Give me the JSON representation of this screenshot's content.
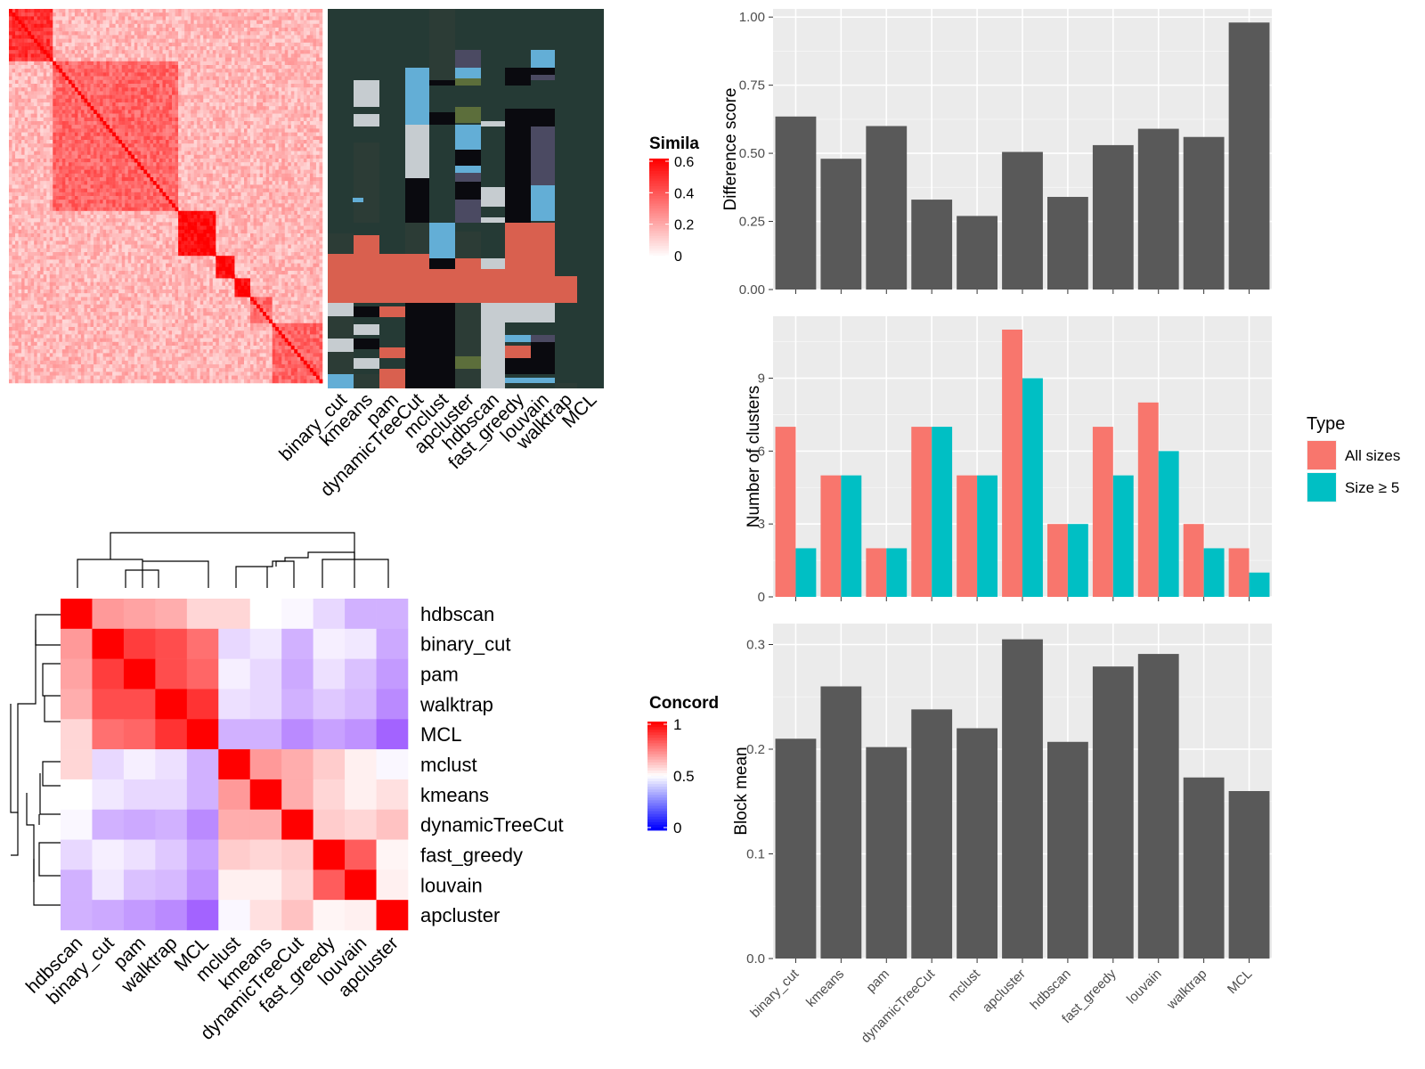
{
  "method_order_top": [
    "binary_cut",
    "kmeans",
    "pam",
    "dynamicTreeCut",
    "mclust",
    "apcluster",
    "hdbscan",
    "fast_greedy",
    "louvain",
    "walktrap",
    "MCL"
  ],
  "similarity_legend": {
    "title": "Simila",
    "ticks": [
      "0.6",
      "0.4",
      "0.2",
      "0"
    ]
  },
  "concordance_legend": {
    "title": "Concord",
    "ticks": [
      "1",
      "0.5",
      "0"
    ]
  },
  "colors": {
    "panel_bg": "#ebebeb",
    "bar_gray": "#595959",
    "all_sizes": "#f8766d",
    "size_ge5": "#00bfc4",
    "cluster_bg": "#253a35",
    "cluster_salmon": "#d9604f",
    "cluster_light": "#c6ccd0",
    "cluster_blue": "#63aed6",
    "cluster_black": "#0a0a0f",
    "cluster_olive": "#5c6e3b",
    "cluster_dark": "#2c3c36",
    "cluster_purple": "#4b4a62"
  },
  "chart_data": [
    {
      "type": "heatmap",
      "name": "similarity",
      "title": "",
      "scale": {
        "min": 0,
        "max": 0.6,
        "low_color": "#ffffff",
        "high_color": "#ff0000"
      },
      "grid_size": 100,
      "diagonal_blocks": [
        [
          0,
          14
        ],
        [
          14,
          54
        ],
        [
          54,
          66
        ],
        [
          66,
          72
        ],
        [
          72,
          77
        ],
        [
          77,
          84
        ],
        [
          84,
          100
        ]
      ]
    },
    {
      "type": "heatmap",
      "name": "cluster_membership",
      "title": "",
      "columns": [
        "binary_cut",
        "kmeans",
        "pam",
        "dynamicTreeCut",
        "mclust",
        "apcluster",
        "hdbscan",
        "fast_greedy",
        "louvain",
        "walktrap",
        "MCL"
      ]
    },
    {
      "type": "heatmap",
      "name": "concordance",
      "title": "",
      "rows": [
        "hdbscan",
        "binary_cut",
        "pam",
        "walktrap",
        "MCL",
        "mclust",
        "kmeans",
        "dynamicTreeCut",
        "fast_greedy",
        "louvain",
        "apcluster"
      ],
      "columns": [
        "hdbscan",
        "binary_cut",
        "pam",
        "walktrap",
        "MCL",
        "mclust",
        "kmeans",
        "dynamicTreeCut",
        "fast_greedy",
        "louvain",
        "apcluster"
      ],
      "scale": {
        "min": 0,
        "mid": 0.5,
        "max": 1
      },
      "values": [
        [
          1.0,
          0.7,
          0.68,
          0.66,
          0.58,
          0.58,
          0.5,
          0.48,
          0.4,
          0.3,
          0.3
        ],
        [
          0.7,
          1.0,
          0.88,
          0.85,
          0.78,
          0.4,
          0.44,
          0.3,
          0.46,
          0.44,
          0.28
        ],
        [
          0.68,
          0.88,
          1.0,
          0.85,
          0.8,
          0.46,
          0.4,
          0.28,
          0.42,
          0.34,
          0.24
        ],
        [
          0.66,
          0.85,
          0.85,
          1.0,
          0.9,
          0.42,
          0.4,
          0.3,
          0.36,
          0.32,
          0.2
        ],
        [
          0.58,
          0.78,
          0.8,
          0.9,
          1.0,
          0.3,
          0.3,
          0.2,
          0.26,
          0.22,
          0.1
        ],
        [
          0.58,
          0.4,
          0.46,
          0.42,
          0.3,
          1.0,
          0.7,
          0.66,
          0.6,
          0.53,
          0.48
        ],
        [
          0.5,
          0.44,
          0.4,
          0.4,
          0.3,
          0.7,
          1.0,
          0.66,
          0.58,
          0.53,
          0.56
        ],
        [
          0.48,
          0.3,
          0.28,
          0.3,
          0.2,
          0.66,
          0.66,
          1.0,
          0.6,
          0.58,
          0.62
        ],
        [
          0.4,
          0.46,
          0.42,
          0.36,
          0.26,
          0.6,
          0.58,
          0.6,
          1.0,
          0.82,
          0.52
        ],
        [
          0.3,
          0.44,
          0.34,
          0.32,
          0.22,
          0.53,
          0.53,
          0.58,
          0.82,
          1.0,
          0.53
        ],
        [
          0.3,
          0.28,
          0.24,
          0.2,
          0.1,
          0.48,
          0.56,
          0.62,
          0.52,
          0.53,
          1.0
        ]
      ]
    },
    {
      "type": "bar",
      "name": "difference_score",
      "categories": [
        "binary_cut",
        "kmeans",
        "pam",
        "dynamicTreeCut",
        "mclust",
        "apcluster",
        "hdbscan",
        "fast_greedy",
        "louvain",
        "walktrap",
        "MCL"
      ],
      "values": [
        0.635,
        0.48,
        0.6,
        0.33,
        0.27,
        0.505,
        0.34,
        0.53,
        0.59,
        0.56,
        0.98
      ],
      "title": "",
      "xlabel": "",
      "ylabel": "Difference score",
      "ylim": [
        0,
        1.03
      ],
      "yticks": [
        "0.00",
        "0.25",
        "0.50",
        "0.75",
        "1.00"
      ]
    },
    {
      "type": "bar",
      "name": "number_of_clusters",
      "categories": [
        "binary_cut",
        "kmeans",
        "pam",
        "dynamicTreeCut",
        "mclust",
        "apcluster",
        "hdbscan",
        "fast_greedy",
        "louvain",
        "walktrap",
        "MCL"
      ],
      "series": [
        {
          "name": "All sizes",
          "values": [
            7,
            5,
            2,
            7,
            5,
            11,
            3,
            7,
            8,
            3,
            2
          ]
        },
        {
          "name": "Size ≥ 5",
          "values": [
            2,
            5,
            2,
            7,
            5,
            9,
            3,
            5,
            6,
            2,
            1
          ]
        }
      ],
      "title": "",
      "xlabel": "",
      "ylabel": "Number of clusters",
      "ylim": [
        0,
        11.55
      ],
      "yticks": [
        "0",
        "3",
        "6",
        "9"
      ],
      "legend": {
        "title": "Type",
        "position": "right"
      }
    },
    {
      "type": "bar",
      "name": "block_mean",
      "categories": [
        "binary_cut",
        "kmeans",
        "pam",
        "dynamicTreeCut",
        "mclust",
        "apcluster",
        "hdbscan",
        "fast_greedy",
        "louvain",
        "walktrap",
        "MCL"
      ],
      "values": [
        0.21,
        0.26,
        0.202,
        0.238,
        0.22,
        0.305,
        0.207,
        0.279,
        0.291,
        0.173,
        0.16
      ],
      "title": "",
      "xlabel": "",
      "ylabel": "Block mean",
      "ylim": [
        0,
        0.32
      ],
      "yticks": [
        "0.0",
        "0.1",
        "0.2",
        "0.3"
      ]
    }
  ]
}
